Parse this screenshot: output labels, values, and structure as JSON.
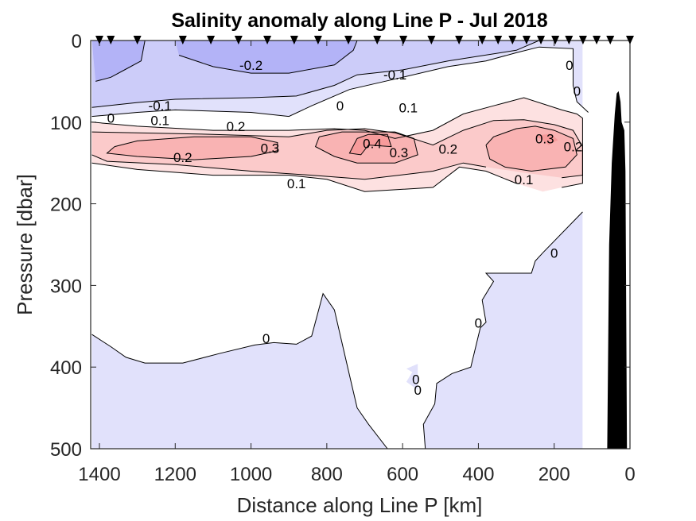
{
  "chart_data": {
    "type": "contour",
    "title": "Salinity anomaly along Line P - Jul 2018",
    "xlabel": "Distance along Line P [km]",
    "ylabel": "Pressure [dbar]",
    "xlim": [
      1420,
      0
    ],
    "ylim": [
      0,
      500
    ],
    "x_reversed": true,
    "y_reversed": true,
    "xticks": [
      1400,
      1200,
      1000,
      800,
      600,
      400,
      200,
      0
    ],
    "xtick_labels": [
      "1400",
      "1200",
      "1000",
      "800",
      "600",
      "400",
      "200",
      "0"
    ],
    "yticks": [
      0,
      100,
      200,
      300,
      400,
      500
    ],
    "ytick_labels": [
      "0",
      "100",
      "200",
      "300",
      "400",
      "500"
    ],
    "contour_levels": [
      -0.2,
      -0.1,
      0,
      0.1,
      0.2,
      0.3,
      0.4
    ],
    "level_colors": {
      "-0.3": "#b3b3f7",
      "-0.2": "#ccccf9",
      "-0.1": "#e1e1fb",
      "0": "#ffffff",
      "0.1": "#fde1e1",
      "0.2": "#fbcaca",
      "0.3": "#f9b3b3",
      "0.4": "#f79b9b"
    },
    "contour_labels": [
      {
        "text": "-0.2",
        "x": 1000,
        "y": 30
      },
      {
        "text": "-0.1",
        "x": 1240,
        "y": 80
      },
      {
        "text": "-0.1",
        "x": 620,
        "y": 42
      },
      {
        "text": "0",
        "x": 1370,
        "y": 95
      },
      {
        "text": "0",
        "x": 765,
        "y": 80
      },
      {
        "text": "0",
        "x": 160,
        "y": 30
      },
      {
        "text": "0",
        "x": 140,
        "y": 62
      },
      {
        "text": "0.1",
        "x": 1240,
        "y": 98
      },
      {
        "text": "0.1",
        "x": 585,
        "y": 82
      },
      {
        "text": "0.1",
        "x": 880,
        "y": 175
      },
      {
        "text": "0.1",
        "x": 280,
        "y": 170
      },
      {
        "text": "0.2",
        "x": 1040,
        "y": 105
      },
      {
        "text": "0.2",
        "x": 1180,
        "y": 143
      },
      {
        "text": "0.2",
        "x": 480,
        "y": 133
      },
      {
        "text": "0.2",
        "x": 150,
        "y": 130
      },
      {
        "text": "0.3",
        "x": 950,
        "y": 132
      },
      {
        "text": "0.3",
        "x": 610,
        "y": 137
      },
      {
        "text": "0.3",
        "x": 225,
        "y": 120
      },
      {
        "text": "0.4",
        "x": 680,
        "y": 126
      },
      {
        "text": "0",
        "x": 960,
        "y": 365
      },
      {
        "text": "0",
        "x": 400,
        "y": 346
      },
      {
        "text": "0",
        "x": 200,
        "y": 260
      },
      {
        "text": "0",
        "x": 560,
        "y": 428
      },
      {
        "text": "0",
        "x": 565,
        "y": 415
      }
    ],
    "stations_km": [
      1400,
      1370,
      1300,
      1180,
      1106,
      1033,
      957,
      886,
      823,
      743,
      667,
      598,
      524,
      451,
      390,
      348,
      310,
      273,
      235,
      197,
      161,
      124,
      88,
      52,
      0
    ],
    "data_extent_km": [
      1420,
      125
    ],
    "bathymetry_km_dbar": [
      [
        60,
        500
      ],
      [
        55,
        250
      ],
      [
        48,
        150
      ],
      [
        40,
        90
      ],
      [
        35,
        65
      ],
      [
        30,
        62
      ],
      [
        25,
        75
      ],
      [
        22,
        100
      ],
      [
        15,
        110
      ],
      [
        12,
        160
      ],
      [
        8,
        500
      ]
    ]
  }
}
